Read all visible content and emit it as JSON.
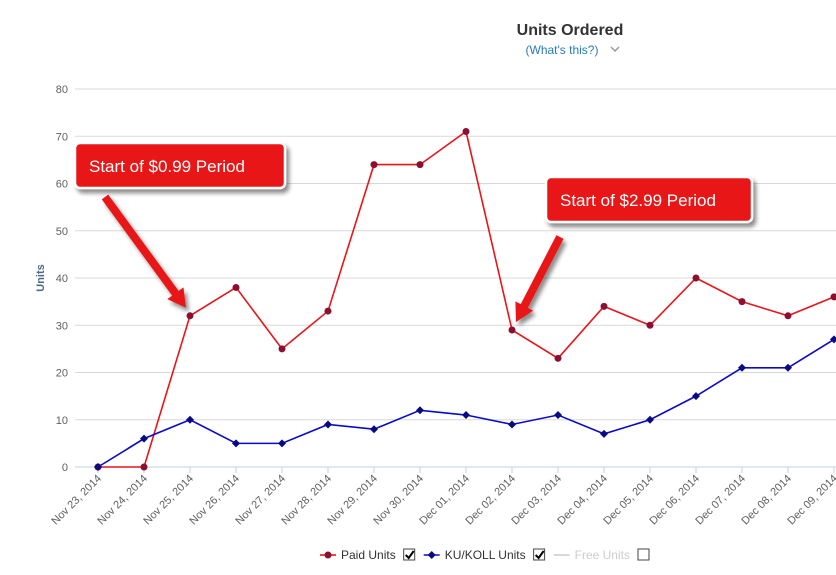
{
  "chart_data": {
    "type": "line",
    "title": "Units Ordered",
    "subtitle": "(What's this?)",
    "y_label": "Units",
    "categories": [
      "Nov 23, 2014",
      "Nov 24, 2014",
      "Nov 25, 2014",
      "Nov 26, 2014",
      "Nov 27, 2014",
      "Nov 28, 2014",
      "Nov 29, 2014",
      "Nov 30, 2014",
      "Dec 01, 2014",
      "Dec 02, 2014",
      "Dec 03, 2014",
      "Dec 04, 2014",
      "Dec 05, 2014",
      "Dec 06, 2014",
      "Dec 07, 2014",
      "Dec 08, 2014",
      "Dec 09, 2014"
    ],
    "series": [
      {
        "name": "Paid Units",
        "color": "#e8151b",
        "marker_color": "#8b1030",
        "marker": "circle",
        "checked": true,
        "values": [
          0,
          0,
          32,
          38,
          25,
          33,
          64,
          64,
          71,
          29,
          23,
          34,
          30,
          40,
          35,
          32,
          36
        ]
      },
      {
        "name": "KU/KOLL Units",
        "color": "#0a0acc",
        "marker_color": "#0a0a80",
        "marker": "diamond",
        "checked": true,
        "values": [
          0,
          6,
          10,
          5,
          5,
          9,
          8,
          12,
          11,
          9,
          11,
          7,
          10,
          15,
          21,
          21,
          27
        ]
      }
    ],
    "hidden_series": [
      {
        "name": "Free Units",
        "color": "#cccccc",
        "checked": false
      }
    ],
    "ylim": [
      0,
      80
    ],
    "yticks": [
      0,
      10,
      20,
      30,
      40,
      50,
      60,
      70,
      80
    ],
    "grid": true,
    "annotations": [
      {
        "text": "Start of $0.99 Period",
        "category_index": 2,
        "series_index": 0
      },
      {
        "text": "Start of $2.99 Period",
        "category_index": 9,
        "series_index": 0
      }
    ]
  }
}
